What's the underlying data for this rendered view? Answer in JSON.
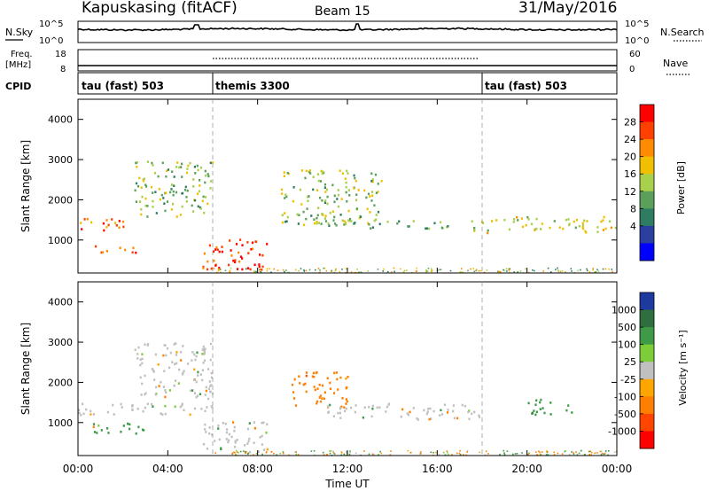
{
  "header": {
    "site": "Kapuskasing (fitACF)",
    "beam": "Beam 15",
    "date": "31/May/2016"
  },
  "strips": {
    "nsky_label": "N.Sky",
    "nsky_ticks": [
      "10^5",
      "10^0"
    ],
    "nsearch_label": "N.Search",
    "nsearch_ticks": [
      "10^5",
      "10^0"
    ],
    "freq_label": "Freq.",
    "freq_unit": "[MHz]",
    "freq_ticks": [
      "18",
      "8"
    ],
    "nave_label": "Nave",
    "nave_ticks": [
      "60",
      "0"
    ],
    "cpid_label": "CPID",
    "modes": [
      {
        "name": "tau (fast) 503",
        "start_hour": 0
      },
      {
        "name": "themis 3300",
        "start_hour": 6
      },
      {
        "name": "tau (fast) 503",
        "start_hour": 18
      }
    ]
  },
  "axes": {
    "y_label": "Slant Range [km]",
    "y_ticks": [
      "4000",
      "3000",
      "2000",
      "1000"
    ],
    "x_label": "Time UT",
    "x_ticks": [
      "00:00",
      "04:00",
      "08:00",
      "12:00",
      "16:00",
      "20:00",
      "00:00"
    ]
  },
  "colorbars": {
    "power": {
      "label": "Power [dB]",
      "ticks": [
        "28",
        "24",
        "20",
        "16",
        "12",
        "8",
        "4"
      ],
      "colors": [
        "#ff0000",
        "#ff4000",
        "#ff8c00",
        "#f0c000",
        "#a8d04a",
        "#5aa05a",
        "#2e7d62",
        "#2a3fa0",
        "#0000ff"
      ]
    },
    "velocity": {
      "label": "Velocity [m s⁻¹]",
      "ticks": [
        "1000",
        "500",
        "100",
        "25",
        "-25",
        "-100",
        "-500",
        "-1000"
      ],
      "colors": [
        "#1f3a9e",
        "#2f6f3f",
        "#3e9a46",
        "#7ccd38",
        "#c0c0c0",
        "#ffa500",
        "#ff7f00",
        "#ff4500",
        "#ff0000"
      ]
    }
  },
  "chart_data": [
    {
      "type": "heatmap",
      "title": "Power",
      "xlabel": "Time UT",
      "ylabel": "Slant Range [km]",
      "x_range_hours": [
        0,
        24
      ],
      "y_range_km": [
        180,
        4500
      ],
      "value_range_db": [
        0,
        32
      ],
      "regions": [
        {
          "t0": 0.0,
          "t1": 2.5,
          "r0": 1250,
          "r1": 1550,
          "value": 26
        },
        {
          "t0": 0.7,
          "t1": 2.7,
          "r0": 700,
          "r1": 900,
          "value": 28
        },
        {
          "t0": 2.5,
          "t1": 6.0,
          "r0": 1600,
          "r1": 3000,
          "value": 14
        },
        {
          "t0": 5.5,
          "t1": 8.5,
          "r0": 280,
          "r1": 1050,
          "value": 30
        },
        {
          "t0": 9.0,
          "t1": 13.5,
          "r0": 1400,
          "r1": 2800,
          "value": 15
        },
        {
          "t0": 10.5,
          "t1": 16.5,
          "r0": 1300,
          "r1": 1500,
          "value": 12
        },
        {
          "t0": 17.5,
          "t1": 24.0,
          "r0": 1200,
          "r1": 1600,
          "value": 18
        }
      ]
    },
    {
      "type": "heatmap",
      "title": "Velocity",
      "xlabel": "Time UT",
      "ylabel": "Slant Range [km]",
      "x_range_hours": [
        0,
        24
      ],
      "y_range_km": [
        180,
        4500
      ],
      "value_range_ms": [
        -1000,
        1000
      ],
      "regions": [
        {
          "t0": 0.0,
          "t1": 6.0,
          "r0": 1200,
          "r1": 1500,
          "value": 0
        },
        {
          "t0": 0.5,
          "t1": 3.0,
          "r0": 700,
          "r1": 1000,
          "value": 150
        },
        {
          "t0": 2.5,
          "t1": 6.0,
          "r0": 1600,
          "r1": 3000,
          "value": 0
        },
        {
          "t0": 5.5,
          "t1": 8.5,
          "r0": 280,
          "r1": 1050,
          "value": 0
        },
        {
          "t0": 9.5,
          "t1": 12.0,
          "r0": 1400,
          "r1": 2300,
          "value": -300
        },
        {
          "t0": 11.0,
          "t1": 18.0,
          "r0": 1100,
          "r1": 1500,
          "value": 0
        },
        {
          "t0": 20.0,
          "t1": 22.0,
          "r0": 1200,
          "r1": 1600,
          "value": 400
        }
      ]
    }
  ]
}
